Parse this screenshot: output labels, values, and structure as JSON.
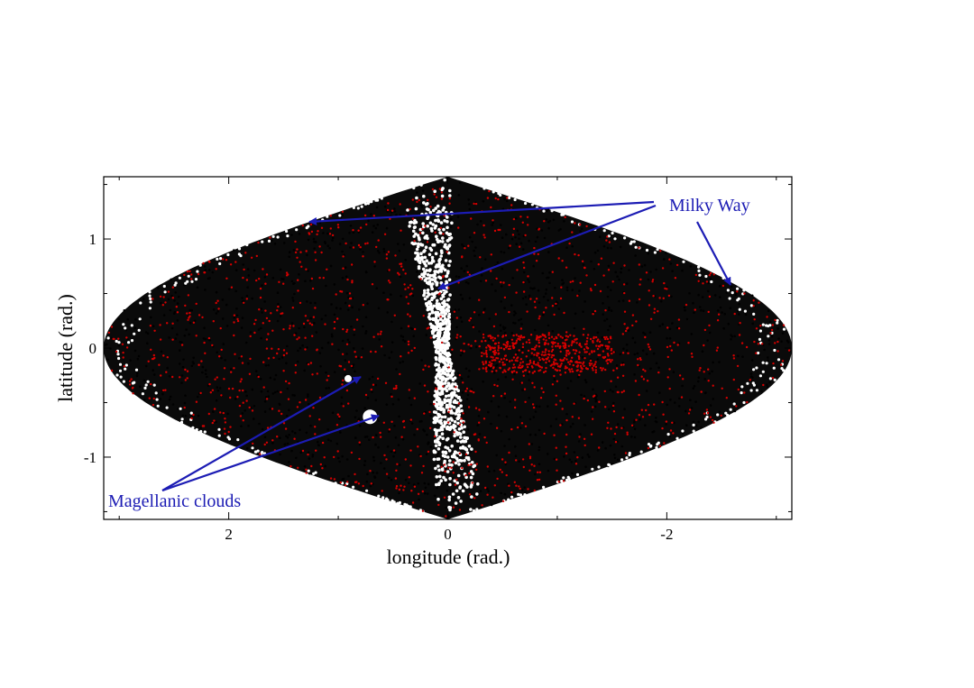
{
  "chart_data": {
    "type": "scatter",
    "title": "",
    "xlabel": "longitude (rad.)",
    "ylabel": "latitude (rad.)",
    "xlim": [
      3.1416,
      -3.1416
    ],
    "ylim": [
      -1.5708,
      1.5708
    ],
    "projection": "sinusoidal",
    "xticks": [
      2,
      0,
      -2
    ],
    "xtick_labels": [
      "2",
      "0",
      "-2"
    ],
    "yticks": [
      1,
      0,
      -1
    ],
    "ytick_labels": [
      "1",
      "0",
      "-1"
    ],
    "grid": false,
    "legend": "none",
    "series": [
      {
        "color": "#000000"
      },
      {
        "color": "#d40000"
      }
    ],
    "annotations": [
      {
        "text": "Milky Way",
        "color": "#1c1cb4",
        "arrows_to": [
          [
            1.3,
            1.13
          ],
          [
            0.12,
            0.54
          ],
          [
            -2.6,
            0.57
          ]
        ]
      },
      {
        "text": "Magellanic clouds",
        "color": "#1c1cb4",
        "arrows_to": [
          [
            0.91,
            -0.28
          ],
          [
            0.71,
            -0.63
          ]
        ]
      }
    ]
  }
}
